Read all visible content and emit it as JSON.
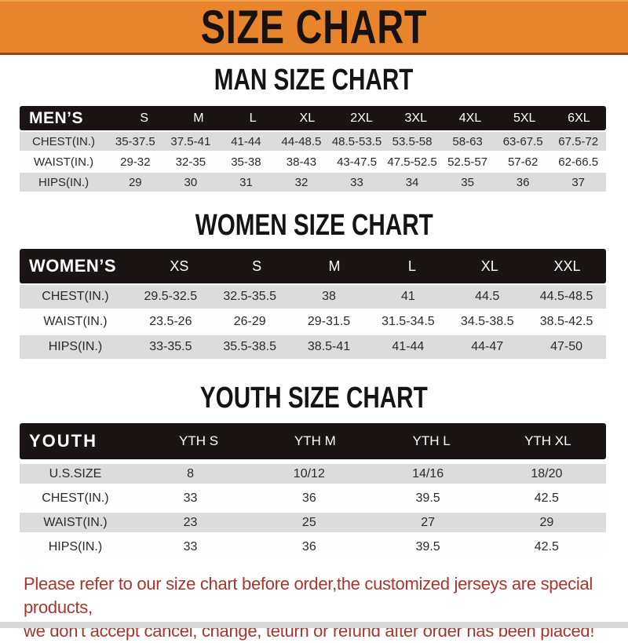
{
  "banner": {
    "title": "SIZE CHART"
  },
  "chart_data": [
    {
      "type": "table",
      "key": "men",
      "title": "MAN SIZE CHART",
      "group_label": "MEN’S",
      "columns": [
        "S",
        "M",
        "L",
        "XL",
        "2XL",
        "3XL",
        "4XL",
        "5XL",
        "6XL"
      ],
      "rows": [
        {
          "label": "CHEST(IN.)",
          "values": [
            "35-37.5",
            "37.5-41",
            "41-44",
            "44-48.5",
            "48.5-53.5",
            "53.5-58",
            "58-63",
            "63-67.5",
            "67.5-72"
          ]
        },
        {
          "label": "WAIST(IN.)",
          "values": [
            "29-32",
            "32-35",
            "35-38",
            "38-43",
            "43-47.5",
            "47.5-52.5",
            "52.5-57",
            "57-62",
            "62-66.5"
          ]
        },
        {
          "label": "HIPS(IN.)",
          "values": [
            "29",
            "30",
            "31",
            "32",
            "33",
            "34",
            "35",
            "36",
            "37"
          ]
        }
      ]
    },
    {
      "type": "table",
      "key": "women",
      "title": "WOMEN SIZE CHART",
      "group_label": "WOMEN’S",
      "columns": [
        "XS",
        "S",
        "M",
        "L",
        "XL",
        "XXL"
      ],
      "rows": [
        {
          "label": "CHEST(IN.)",
          "values": [
            "29.5-32.5",
            "32.5-35.5",
            "38",
            "41",
            "44.5",
            "44.5-48.5"
          ]
        },
        {
          "label": "WAIST(IN.)",
          "values": [
            "23.5-26",
            "26-29",
            "29-31.5",
            "31.5-34.5",
            "34.5-38.5",
            "38.5-42.5"
          ]
        },
        {
          "label": "HIPS(IN.)",
          "values": [
            "33-35.5",
            "35.5-38.5",
            "38.5-41",
            "41-44",
            "44-47",
            "47-50"
          ]
        }
      ]
    },
    {
      "type": "table",
      "key": "youth",
      "title": "YOUTH SIZE CHART",
      "group_label": "YOUTH",
      "columns": [
        "YTH S",
        "YTH M",
        "YTH L",
        "YTH XL"
      ],
      "rows": [
        {
          "label": "U.S.SIZE",
          "values": [
            "8",
            "10/12",
            "14/16",
            "18/20"
          ]
        },
        {
          "label": "CHEST(IN.)",
          "values": [
            "33",
            "36",
            "39.5",
            "42.5"
          ]
        },
        {
          "label": "WAIST(IN.)",
          "values": [
            "23",
            "25",
            "27",
            "29"
          ]
        },
        {
          "label": "HIPS(IN.)",
          "values": [
            "33",
            "36",
            "39.5",
            "42.5"
          ]
        }
      ]
    }
  ],
  "disclaimer": {
    "line1": "Please refer to our size chart before order,the customized jerseys are special products,",
    "line2": "we don't accept cancel, change, teturn or refund after order has been placed!"
  },
  "colors": {
    "banner_bg": "#E8842C",
    "bar_bg": "#1A1514",
    "row_gray": "#DCDCDC",
    "disclaimer_red": "#A8362C"
  }
}
